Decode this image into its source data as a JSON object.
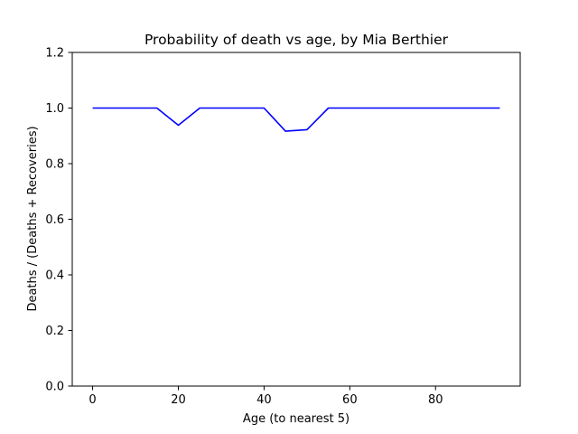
{
  "chart_data": {
    "type": "line",
    "title": "Probability of death vs age, by Mia Berthier",
    "xlabel": "Age (to nearest 5)",
    "ylabel": "Deaths / (Deaths + Recoveries)",
    "xlim": [
      -4.75,
      99.75
    ],
    "ylim": [
      0,
      1.2
    ],
    "xticks": [
      0,
      20,
      40,
      60,
      80
    ],
    "yticks": [
      0.0,
      0.2,
      0.4,
      0.6,
      0.8,
      1.0,
      1.2
    ],
    "xtick_labels": [
      "0",
      "20",
      "40",
      "60",
      "80"
    ],
    "ytick_labels": [
      "0.0",
      "0.2",
      "0.4",
      "0.6",
      "0.8",
      "1.0",
      "1.2"
    ],
    "grid": false,
    "series": [
      {
        "color": "#0000ff",
        "x": [
          0,
          5,
          10,
          15,
          20,
          25,
          30,
          35,
          40,
          45,
          50,
          55,
          60,
          65,
          70,
          75,
          80,
          85,
          90,
          95
        ],
        "y": [
          1.0,
          1.0,
          1.0,
          1.0,
          0.938,
          1.0,
          1.0,
          1.0,
          1.0,
          0.917,
          0.922,
          1.0,
          1.0,
          1.0,
          1.0,
          1.0,
          1.0,
          1.0,
          1.0,
          1.0
        ]
      }
    ]
  }
}
